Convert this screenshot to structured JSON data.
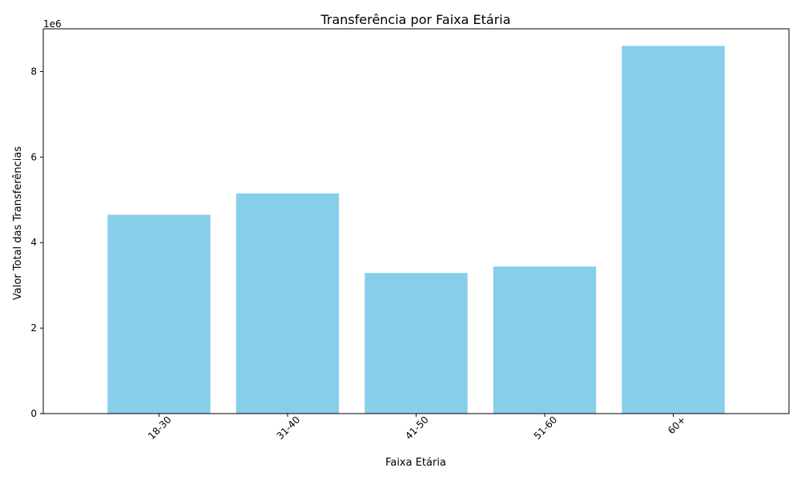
{
  "chart_data": {
    "type": "bar",
    "title": "Transferência por Faixa Etária",
    "xlabel": "Faixa Etária",
    "ylabel": "Valor Total das Transferências",
    "offset_text": "1e6",
    "categories": [
      "18-30",
      "31-40",
      "41-50",
      "51-60",
      "60+"
    ],
    "values": [
      4650000,
      5150000,
      3290000,
      3440000,
      8600000
    ],
    "ylim": [
      0,
      9000000
    ],
    "yticks": [
      0,
      2000000,
      4000000,
      6000000,
      8000000
    ],
    "ytick_labels": [
      "0",
      "2",
      "4",
      "6",
      "8"
    ],
    "x_tick_rotation": 45,
    "bar_color": "#87ceeb",
    "grid": false,
    "legend": "none"
  }
}
